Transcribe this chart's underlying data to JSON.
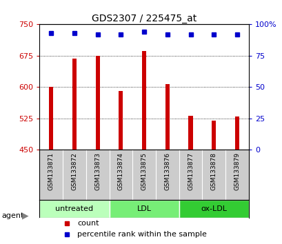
{
  "title": "GDS2307 / 225475_at",
  "samples": [
    "GSM133871",
    "GSM133872",
    "GSM133873",
    "GSM133874",
    "GSM133875",
    "GSM133876",
    "GSM133877",
    "GSM133878",
    "GSM133879"
  ],
  "counts": [
    601,
    668,
    675,
    591,
    686,
    607,
    531,
    519,
    530
  ],
  "percentiles": [
    93,
    93,
    92,
    92,
    94,
    92,
    92,
    92,
    92
  ],
  "ylim_left": [
    450,
    750
  ],
  "yticks_left": [
    450,
    525,
    600,
    675,
    750
  ],
  "ylim_right": [
    0,
    100
  ],
  "yticks_right": [
    0,
    25,
    50,
    75,
    100
  ],
  "bar_color": "#cc0000",
  "dot_color": "#0000cc",
  "bar_bottom": 450,
  "groups": [
    {
      "label": "untreated",
      "indices": [
        0,
        1,
        2
      ],
      "color": "#bbffbb"
    },
    {
      "label": "LDL",
      "indices": [
        3,
        4,
        5
      ],
      "color": "#77ee77"
    },
    {
      "label": "ox-LDL",
      "indices": [
        6,
        7,
        8
      ],
      "color": "#33cc33"
    }
  ],
  "agent_label": "agent",
  "legend_count_label": "count",
  "legend_pct_label": "percentile rank within the sample",
  "background_color": "#ffffff",
  "plot_bg_color": "#ffffff",
  "xlabel_area_color": "#cccccc",
  "title_fontsize": 10,
  "tick_fontsize": 8,
  "sample_fontsize": 6.5,
  "legend_fontsize": 8,
  "group_fontsize": 8
}
